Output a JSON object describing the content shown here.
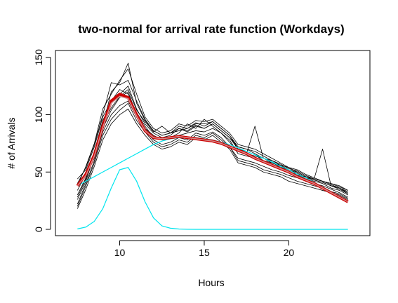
{
  "chart_data": {
    "type": "line",
    "title": "two-normal for arrival rate function (Workdays)",
    "xlabel": "Hours",
    "ylabel": "# of Arrivals",
    "xlim": [
      7,
      24
    ],
    "ylim": [
      0,
      150
    ],
    "xticks": [
      10,
      15,
      20
    ],
    "yticks": [
      0,
      50,
      100,
      150
    ],
    "grid": false,
    "legend": "none",
    "colors": {
      "daily": "#000000",
      "fit": "#cc0000",
      "smooth": "#d48c8c",
      "component": "#00e5ee"
    },
    "x": [
      7.5,
      8.0,
      8.5,
      9.0,
      9.5,
      10.0,
      10.5,
      11.0,
      11.5,
      12.0,
      12.5,
      13.0,
      13.5,
      14.0,
      14.5,
      15.0,
      15.5,
      16.0,
      16.5,
      17.0,
      17.5,
      18.0,
      18.5,
      19.0,
      19.5,
      20.0,
      20.5,
      21.0,
      21.5,
      22.0,
      22.5,
      23.0,
      23.5
    ],
    "series": [
      {
        "role": "daily",
        "values": [
          30,
          45,
          68,
          95,
          110,
          118,
          125,
          105,
          92,
          84,
          80,
          82,
          88,
          85,
          90,
          88,
          92,
          86,
          80,
          70,
          68,
          65,
          60,
          58,
          55,
          50,
          48,
          44,
          42,
          40,
          36,
          34,
          30
        ]
      },
      {
        "role": "daily",
        "values": [
          22,
          40,
          60,
          85,
          100,
          108,
          112,
          98,
          86,
          78,
          74,
          76,
          80,
          78,
          84,
          82,
          85,
          80,
          72,
          62,
          60,
          58,
          55,
          52,
          50,
          47,
          45,
          42,
          40,
          38,
          35,
          32,
          28
        ]
      },
      {
        "role": "daily",
        "values": [
          38,
          55,
          75,
          105,
          118,
          130,
          140,
          118,
          98,
          88,
          84,
          86,
          92,
          90,
          95,
          94,
          96,
          90,
          84,
          74,
          72,
          70,
          66,
          62,
          58,
          54,
          52,
          48,
          45,
          42,
          40,
          38,
          34
        ]
      },
      {
        "role": "daily",
        "values": [
          18,
          35,
          55,
          78,
          92,
          100,
          105,
          92,
          82,
          74,
          70,
          72,
          76,
          74,
          80,
          78,
          82,
          76,
          70,
          58,
          56,
          54,
          50,
          48,
          46,
          42,
          40,
          38,
          36,
          34,
          32,
          30,
          26
        ]
      },
      {
        "role": "daily",
        "values": [
          44,
          52,
          72,
          98,
          112,
          122,
          118,
          102,
          90,
          80,
          78,
          80,
          84,
          92,
          88,
          96,
          90,
          84,
          78,
          66,
          64,
          62,
          60,
          56,
          52,
          50,
          47,
          46,
          43,
          41,
          38,
          36,
          32
        ]
      },
      {
        "role": "daily",
        "values": [
          26,
          42,
          65,
          90,
          120,
          128,
          145,
          110,
          95,
          86,
          82,
          84,
          86,
          88,
          93,
          90,
          94,
          88,
          82,
          70,
          66,
          64,
          62,
          59,
          54,
          52,
          49,
          45,
          43,
          41,
          38,
          35,
          31
        ]
      },
      {
        "role": "daily",
        "values": [
          34,
          48,
          62,
          88,
          104,
          115,
          120,
          100,
          88,
          82,
          78,
          80,
          82,
          84,
          86,
          85,
          88,
          84,
          76,
          68,
          66,
          90,
          62,
          58,
          56,
          54,
          50,
          46,
          44,
          42,
          39,
          36,
          33
        ]
      },
      {
        "role": "daily",
        "values": [
          28,
          44,
          66,
          92,
          106,
          116,
          122,
          104,
          94,
          85,
          90,
          84,
          88,
          86,
          91,
          88,
          92,
          86,
          80,
          72,
          70,
          66,
          62,
          60,
          56,
          52,
          50,
          46,
          44,
          70,
          38,
          36,
          31
        ]
      },
      {
        "role": "daily",
        "values": [
          20,
          38,
          58,
          82,
          96,
          104,
          110,
          95,
          85,
          76,
          72,
          74,
          78,
          76,
          82,
          80,
          84,
          78,
          72,
          60,
          58,
          56,
          52,
          50,
          48,
          45,
          42,
          40,
          38,
          36,
          33,
          31,
          27
        ]
      },
      {
        "role": "daily",
        "values": [
          40,
          54,
          74,
          100,
          128,
          126,
          130,
          112,
          96,
          86,
          82,
          84,
          90,
          88,
          92,
          92,
          94,
          88,
          82,
          72,
          70,
          68,
          64,
          60,
          57,
          53,
          51,
          47,
          44,
          42,
          40,
          37,
          34
        ]
      },
      {
        "role": "fit",
        "values": [
          38,
          48,
          65,
          90,
          112,
          118,
          115,
          100,
          86,
          80,
          79,
          80,
          81,
          80,
          79,
          78,
          77,
          75,
          72,
          69,
          66,
          62,
          59,
          56,
          53,
          50,
          46,
          43,
          40,
          36,
          32,
          28,
          24
        ]
      },
      {
        "role": "smooth",
        "values": [
          38,
          47,
          64,
          89,
          110,
          116,
          114,
          99,
          86,
          80,
          79,
          80,
          81,
          80,
          79,
          78,
          77,
          75,
          72,
          69,
          66,
          62,
          59,
          56,
          53,
          50,
          46,
          43,
          40,
          36,
          32,
          28,
          24
        ]
      },
      {
        "role": "component",
        "values": [
          0.4,
          2,
          7,
          18,
          36,
          52,
          54,
          42,
          24,
          10,
          3,
          1,
          0.3,
          0.1,
          0,
          0,
          0,
          0,
          0,
          0,
          0,
          0,
          0,
          0,
          0,
          0,
          0,
          0,
          0,
          0,
          0,
          0,
          0
        ]
      },
      {
        "role": "component",
        "values": [
          38,
          42,
          46,
          50,
          54,
          58,
          62,
          66,
          70,
          74,
          77,
          79,
          80,
          80,
          80,
          79,
          78,
          76,
          74,
          71,
          68,
          65,
          62,
          59,
          55,
          52,
          48,
          45,
          41,
          37,
          33,
          29,
          25
        ]
      }
    ]
  }
}
